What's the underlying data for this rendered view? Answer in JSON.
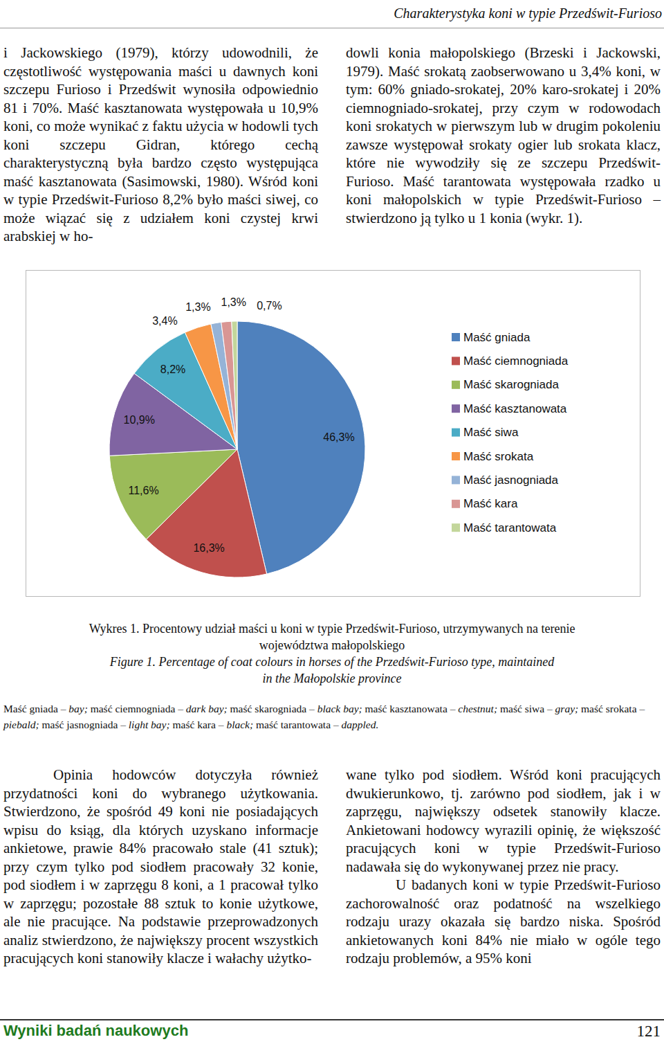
{
  "header": {
    "title": "Charakterystyka koni w typie Przedświt-Furioso"
  },
  "text": {
    "top_left": "i Jackowskiego (1979), którzy udowodnili, że częstotliwość występowania maści u dawnych koni szczepu Furioso i Przedświt wynosiła odpowiednio 81 i 70%. Maść kasztanowata występowała u 10,9% koni, co może wynikać z faktu użycia w hodowli tych koni szczepu Gidran, którego cechą charakterystyczną była bardzo często występująca maść kasztanowata (Sasimowski, 1980). Wśród koni w typie Przedświt-Furioso 8,2% było maści siwej, co może wiązać się z udziałem koni czystej krwi arabskiej w ho-",
    "top_right": "dowli konia małopolskiego (Brzeski i Jackowski, 1979). Maść srokatą zaobserwowano u 3,4% koni, w tym: 60% gniado-srokatej, 20% karo-srokatej i 20% ciemnogniado-srokatej, przy czym w rodowodach koni srokatych w pierwszym lub w drugim pokoleniu zawsze występował srokaty ogier lub srokata klacz, które nie wywodziły się ze szczepu Przedświt-Furioso. Maść tarantowata występowała rzadko u koni małopolskich w typie Przedświt-Furioso – stwierdzono ją tylko u 1 konia (wykr. 1).",
    "bottom_left": "Opinia hodowców dotyczyła również przydatności koni do wybranego użytkowania. Stwierdzono, że spośród 49 koni nie posiadających wpisu do ksiąg, dla których uzyskano informacje ankietowe, prawie 84% pracowało stale (41 sztuk); przy czym tylko pod siodłem pracowały 32 konie, pod siodłem i w zaprzęgu 8 koni, a 1 pracował tylko w zaprzęgu; pozostałe 88 sztuk to konie użytkowe, ale nie pracujące. Na podstawie przeprowadzonych analiz stwierdzono, że największy procent wszystkich pracujących koni stanowiły klacze i wałachy użytko-",
    "bottom_right": [
      "wane tylko pod siodłem. Wśród koni pracujących dwukierunkowo, tj. zarówno pod siodłem, jak i w zaprzęgu, największy odsetek stanowiły klacze. Ankietowani hodowcy wyrazili opinię, że większość pracujących koni w typie Przedświt-Furioso nadawała się do wykonywanej przez nie pracy.",
      "U badanych koni w typie Przedświt-Furioso zachorowalność oraz podatność na wszelkiego rodzaju urazy okazała się bardzo niska. Spośród ankietowanych koni 84% nie miało w ogóle tego rodzaju problemów, a 95% koni"
    ]
  },
  "chart_data": {
    "type": "pie",
    "categories": [
      "Maść gniada",
      "Maść ciemnogniada",
      "Maść skarogniada",
      "Maść kasztanowata",
      "Maść siwa",
      "Maść srokata",
      "Maść jasnogniada",
      "Maść kara",
      "Maść tarantowata"
    ],
    "values": [
      46.3,
      16.3,
      11.6,
      10.9,
      8.2,
      3.4,
      1.3,
      1.3,
      0.7
    ],
    "value_labels": [
      "46,3%",
      "16,3%",
      "11,6%",
      "10,9%",
      "8,2%",
      "3,4%",
      "1,3%",
      "1,3%",
      "0,7%"
    ],
    "colors": [
      "#4f81bd",
      "#c0504d",
      "#9bbb59",
      "#8064a2",
      "#4bacc6",
      "#f79646",
      "#95b3d7",
      "#d99694",
      "#c3d69b"
    ],
    "legend": "right",
    "data_labels": true
  },
  "caption": {
    "pl": [
      "Wykres 1. Procentowy udział maści u koni w typie Przedświt-Furioso, utrzymywanych na terenie",
      "województwa małopolskiego"
    ],
    "en": [
      "Figure 1. Percentage of coat colours in horses of the Przedświt-Furioso type, maintained",
      "in the Małopolskie province"
    ],
    "glossary": [
      {
        "text": "Maść gniada – ",
        "italic": false
      },
      {
        "text": "bay;",
        "italic": true
      },
      {
        "text": " maść ciemnogniada – ",
        "italic": false
      },
      {
        "text": "dark bay;",
        "italic": true
      },
      {
        "text": " maść skarogniada – ",
        "italic": false
      },
      {
        "text": "black bay;",
        "italic": true
      },
      {
        "text": " maść kasztanowata – ",
        "italic": false
      },
      {
        "text": "chestnut;",
        "italic": true
      },
      {
        "text": " maść siwa – ",
        "italic": false
      },
      {
        "text": "gray;",
        "italic": true
      },
      {
        "text": " maść srokata – ",
        "italic": false
      },
      {
        "text": "piebald;",
        "italic": true
      },
      {
        "text": " maść jasnogniada – ",
        "italic": false
      },
      {
        "text": "light bay;",
        "italic": true
      },
      {
        "text": " maść kara – ",
        "italic": false
      },
      {
        "text": "black;",
        "italic": true
      },
      {
        "text": " maść tarantowata – ",
        "italic": false
      },
      {
        "text": "dappled.",
        "italic": true
      }
    ]
  },
  "footer": {
    "section": "Wyniki badań naukowych",
    "page": 121
  }
}
